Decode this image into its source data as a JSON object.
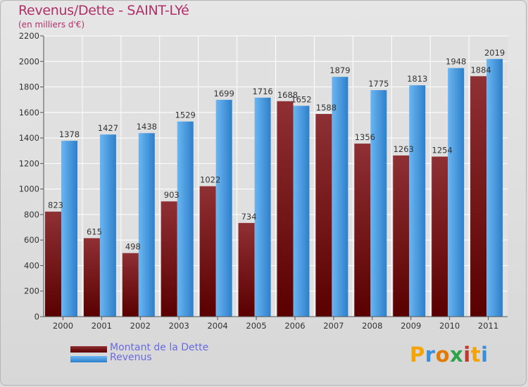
{
  "chart_data": {
    "type": "bar",
    "title": "Revenus/Dette - SAINT-LYé",
    "subtitle": "(en milliers d'€)",
    "categories": [
      "2000",
      "2001",
      "2002",
      "2003",
      "2004",
      "2005",
      "2006",
      "2007",
      "2008",
      "2009",
      "2010",
      "2011"
    ],
    "series": [
      {
        "name": "Montant de la Dette",
        "values": [
          823,
          615,
          498,
          903,
          1022,
          734,
          1688,
          1588,
          1356,
          1263,
          1254,
          1884
        ]
      },
      {
        "name": "Revenus",
        "values": [
          1378,
          1427,
          1438,
          1529,
          1699,
          1716,
          1652,
          1879,
          1775,
          1813,
          1948,
          2019
        ]
      }
    ],
    "yticks": [
      0,
      200,
      400,
      600,
      800,
      1000,
      1200,
      1400,
      1600,
      1800,
      2000,
      2200
    ],
    "ylim": [
      0,
      2200
    ],
    "grid": true,
    "legend": "bottom-left"
  },
  "colors": {
    "debt_light": "#8f3034",
    "debt_dark": "#5a0000",
    "revenue_light": "#5eaeee",
    "revenue_dark": "#2e7fca",
    "title": "#b0306a",
    "legend_text": "#6a6adf"
  },
  "logo": {
    "text": "Proxiti"
  }
}
